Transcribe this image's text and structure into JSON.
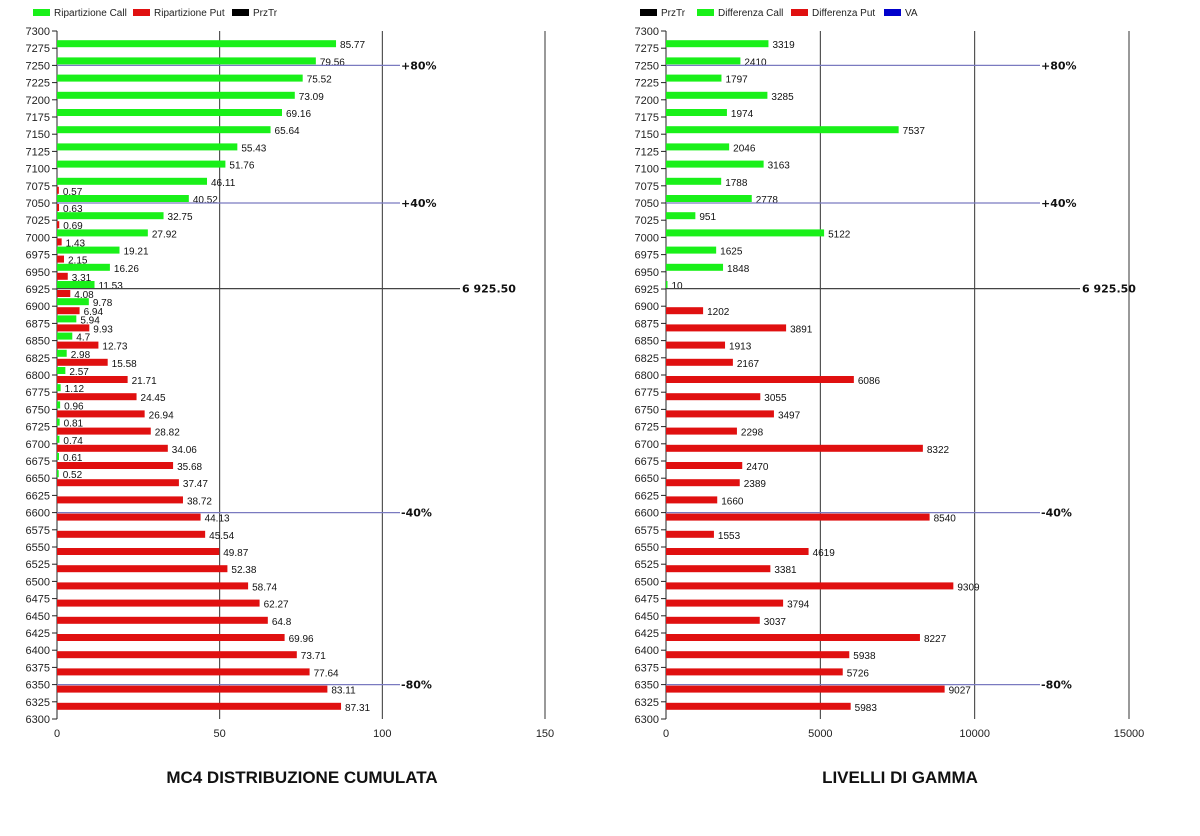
{
  "colors": {
    "call": "#19f019",
    "put": "#e01010",
    "przTr": "#000000",
    "va": "#0000cc",
    "reference_line": "#7a7ac0",
    "grid": "#333333"
  },
  "chart_data": [
    {
      "type": "bar",
      "orientation": "horizontal",
      "title": "MC4 DISTRIBUZIONE CUMULATA",
      "legend": [
        {
          "name": "Ripartizione Call",
          "color": "#19f019"
        },
        {
          "name": "Ripartizione Put",
          "color": "#e01010"
        },
        {
          "name": "PrzTr",
          "color": "#000000"
        }
      ],
      "legend_position": "top-left",
      "xlim": [
        0,
        150
      ],
      "x_ticks": [
        "0",
        "50",
        "100",
        "150"
      ],
      "ylim": [
        6300,
        7300
      ],
      "grid": "vertical",
      "categories": [
        7275,
        7250,
        7225,
        7200,
        7175,
        7150,
        7125,
        7100,
        7075,
        7050,
        7025,
        7000,
        6975,
        6950,
        6925,
        6900,
        6875,
        6850,
        6825,
        6800,
        6775,
        6750,
        6725,
        6700,
        6675,
        6650,
        6625,
        6600,
        6575,
        6550,
        6525,
        6500,
        6475,
        6450,
        6425,
        6400,
        6375,
        6350,
        6325
      ],
      "series": [
        {
          "name": "Ripartizione Call",
          "values": [
            85.77,
            79.56,
            75.52,
            73.09,
            69.16,
            65.64,
            55.43,
            51.76,
            46.11,
            40.52,
            32.75,
            27.92,
            19.21,
            16.26,
            11.53,
            9.78,
            5.94,
            4.7,
            2.98,
            2.57,
            1.12,
            0.96,
            0.81,
            0.74,
            0.61,
            0.52,
            null,
            null,
            null,
            null,
            null,
            null,
            null,
            null,
            null,
            null,
            null,
            null,
            null
          ]
        },
        {
          "name": "Ripartizione Put",
          "values": [
            null,
            null,
            null,
            null,
            null,
            null,
            null,
            null,
            0.57,
            0.63,
            0.69,
            1.43,
            2.15,
            3.31,
            4.08,
            6.94,
            9.93,
            12.73,
            15.58,
            21.71,
            24.45,
            26.94,
            28.82,
            34.06,
            35.68,
            37.47,
            38.72,
            44.13,
            45.54,
            49.87,
            52.38,
            58.74,
            62.27,
            64.8,
            69.96,
            73.71,
            77.64,
            83.11,
            87.31
          ]
        }
      ],
      "reference_lines": [
        {
          "y": 7250,
          "label": "+80%",
          "kind": "va"
        },
        {
          "y": 7050,
          "label": "+40%",
          "kind": "va"
        },
        {
          "y": 6925.5,
          "label": "6 925.50",
          "kind": "przTr"
        },
        {
          "y": 6600,
          "label": "-40%",
          "kind": "va"
        },
        {
          "y": 6350,
          "label": "-80%",
          "kind": "va"
        }
      ]
    },
    {
      "type": "bar",
      "orientation": "horizontal",
      "title": "LIVELLI DI GAMMA",
      "legend": [
        {
          "name": "PrzTr",
          "color": "#000000"
        },
        {
          "name": "Differenza Call",
          "color": "#19f019"
        },
        {
          "name": "Differenza Put",
          "color": "#e01010"
        },
        {
          "name": "VA",
          "color": "#0000cc"
        }
      ],
      "legend_position": "top-left",
      "xlim": [
        0,
        15000
      ],
      "x_ticks": [
        "0",
        "5000",
        "10000",
        "15000"
      ],
      "ylim": [
        6300,
        7300
      ],
      "grid": "vertical",
      "categories": [
        7275,
        7250,
        7225,
        7200,
        7175,
        7150,
        7125,
        7100,
        7075,
        7050,
        7025,
        7000,
        6975,
        6950,
        6925,
        6900,
        6875,
        6850,
        6825,
        6800,
        6775,
        6750,
        6725,
        6700,
        6675,
        6650,
        6625,
        6600,
        6575,
        6550,
        6525,
        6500,
        6475,
        6450,
        6425,
        6400,
        6375,
        6350,
        6325
      ],
      "series": [
        {
          "name": "Differenza Call",
          "values": [
            3319,
            2410,
            1797,
            3285,
            1974,
            7537,
            2046,
            3163,
            1788,
            2778,
            951,
            5122,
            1625,
            1848,
            10,
            null,
            null,
            null,
            null,
            null,
            null,
            null,
            null,
            null,
            null,
            null,
            null,
            null,
            null,
            null,
            null,
            null,
            null,
            null,
            null,
            null,
            null,
            null,
            null
          ]
        },
        {
          "name": "Differenza Put",
          "values": [
            null,
            null,
            null,
            null,
            null,
            null,
            null,
            null,
            null,
            null,
            null,
            null,
            null,
            null,
            null,
            1202,
            3891,
            1913,
            2167,
            6086,
            3055,
            3497,
            2298,
            8322,
            2470,
            2389,
            1660,
            8540,
            1553,
            4619,
            3381,
            9309,
            3794,
            3037,
            8227,
            5938,
            5726,
            9027,
            5983
          ]
        }
      ],
      "reference_lines": [
        {
          "y": 7250,
          "label": "+80%",
          "kind": "va"
        },
        {
          "y": 7050,
          "label": "+40%",
          "kind": "va"
        },
        {
          "y": 6925.5,
          "label": "6 925.50",
          "kind": "przTr"
        },
        {
          "y": 6600,
          "label": "-40%",
          "kind": "va"
        },
        {
          "y": 6350,
          "label": "-80%",
          "kind": "va"
        }
      ]
    }
  ]
}
